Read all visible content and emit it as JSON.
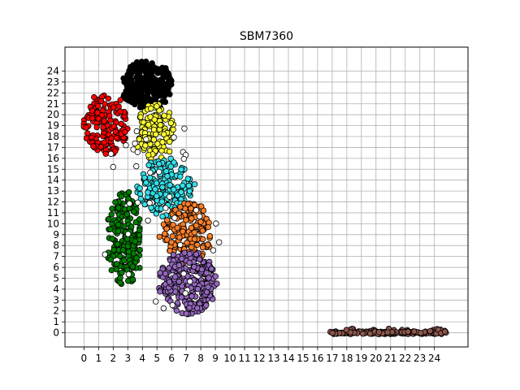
{
  "chart_data": {
    "type": "scatter",
    "title": "SBM7360",
    "xlabel": "",
    "ylabel": "",
    "xlim": [
      -1.3,
      26.3
    ],
    "ylim": [
      -1.3,
      26.2
    ],
    "x_ticks": [
      0,
      1,
      2,
      3,
      4,
      5,
      6,
      7,
      8,
      9,
      10,
      11,
      12,
      13,
      14,
      15,
      16,
      17,
      18,
      19,
      20,
      21,
      22,
      23,
      24
    ],
    "y_ticks": [
      0,
      1,
      2,
      3,
      4,
      5,
      6,
      7,
      8,
      9,
      10,
      11,
      12,
      13,
      14,
      15,
      16,
      17,
      18,
      19,
      20,
      21,
      22,
      23,
      24
    ],
    "grid": true,
    "marker": "circle-black-edge",
    "clusters": [
      {
        "color": "#000000",
        "x_range": [
          2.6,
          6.0
        ],
        "y_range": [
          20.5,
          24.9
        ],
        "n": 260
      },
      {
        "color": "#ff0000",
        "x_range": [
          0.0,
          3.0
        ],
        "y_range": [
          16.3,
          21.9
        ],
        "n": 150
      },
      {
        "color": "#ffff33",
        "x_range": [
          3.6,
          6.1
        ],
        "y_range": [
          15.8,
          21.0
        ],
        "n": 130
      },
      {
        "color": "#33e0e8",
        "x_range": [
          3.8,
          7.4
        ],
        "y_range": [
          10.6,
          16.0
        ],
        "n": 180
      },
      {
        "color": "#007f00",
        "x_range": [
          1.6,
          3.9
        ],
        "y_range": [
          4.2,
          13.0
        ],
        "n": 200
      },
      {
        "color": "#ff7f27",
        "x_range": [
          5.3,
          8.8
        ],
        "y_range": [
          6.5,
          12.0
        ],
        "n": 160
      },
      {
        "color": "#9467bd",
        "x_range": [
          5.2,
          9.0
        ],
        "y_range": [
          1.6,
          7.5
        ],
        "n": 260
      },
      {
        "color": "#8c564b",
        "x_range": [
          17.0,
          24.8
        ],
        "y_range": [
          -0.05,
          0.15
        ],
        "n": 180
      },
      {
        "color": "#ffffff",
        "x_range": [
          0.8,
          9.6
        ],
        "y_range": [
          1.4,
          21.0
        ],
        "n": 40
      }
    ]
  }
}
